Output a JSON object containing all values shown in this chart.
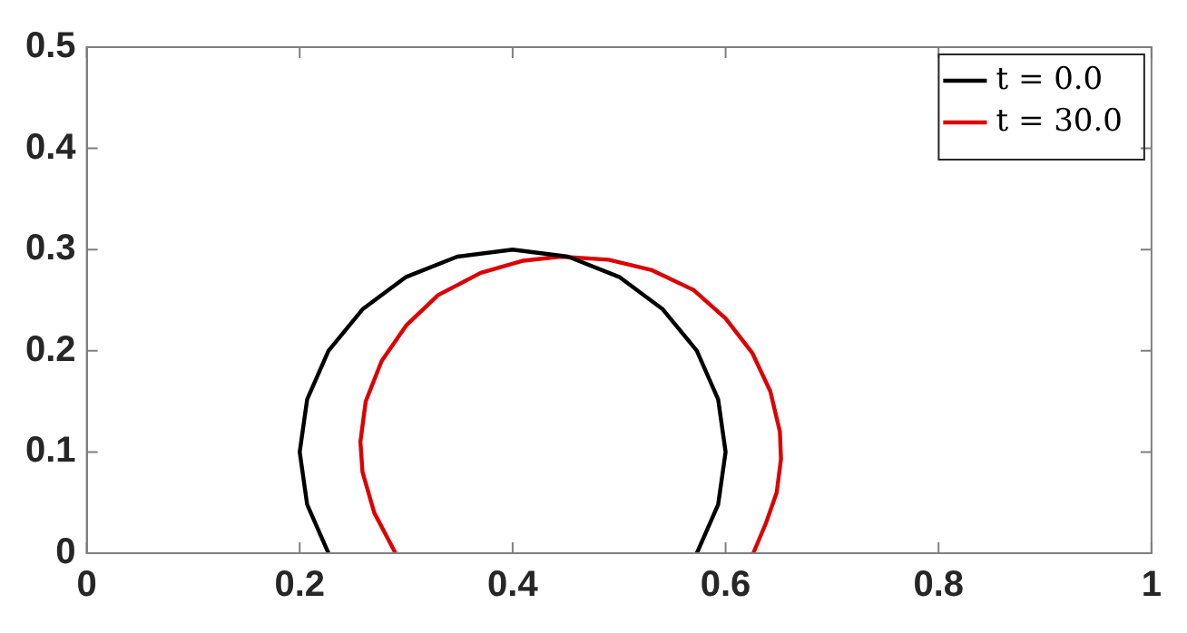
{
  "chart_data": {
    "type": "line",
    "xlim": [
      0,
      1
    ],
    "ylim": [
      0,
      0.5
    ],
    "xticks": [
      0,
      0.2,
      0.4,
      0.6,
      0.8,
      1
    ],
    "yticks": [
      0,
      0.1,
      0.2,
      0.3,
      0.4,
      0.5
    ],
    "grid": false,
    "legend": "top right",
    "marker": "none",
    "line_style": "solid",
    "series": [
      {
        "name": "t = 0.0",
        "color": "#000000",
        "x": [
          0.227,
          0.207,
          0.2,
          0.207,
          0.227,
          0.259,
          0.3,
          0.348,
          0.4,
          0.452,
          0.5,
          0.541,
          0.573,
          0.593,
          0.6,
          0.593,
          0.573
        ],
        "values": [
          0,
          0.048,
          0.1,
          0.152,
          0.2,
          0.241,
          0.273,
          0.293,
          0.3,
          0.293,
          0.273,
          0.241,
          0.2,
          0.152,
          0.1,
          0.048,
          0
        ]
      },
      {
        "name": "t = 30.0",
        "color": "#dd0000",
        "x": [
          0.29,
          0.27,
          0.259,
          0.257,
          0.262,
          0.277,
          0.3,
          0.33,
          0.37,
          0.41,
          0.445,
          0.49,
          0.53,
          0.57,
          0.6,
          0.625,
          0.642,
          0.651,
          0.652,
          0.648,
          0.638,
          0.626
        ],
        "values": [
          0,
          0.04,
          0.08,
          0.11,
          0.15,
          0.19,
          0.225,
          0.255,
          0.277,
          0.289,
          0.293,
          0.29,
          0.28,
          0.26,
          0.232,
          0.198,
          0.16,
          0.12,
          0.093,
          0.06,
          0.03,
          0
        ]
      }
    ]
  }
}
